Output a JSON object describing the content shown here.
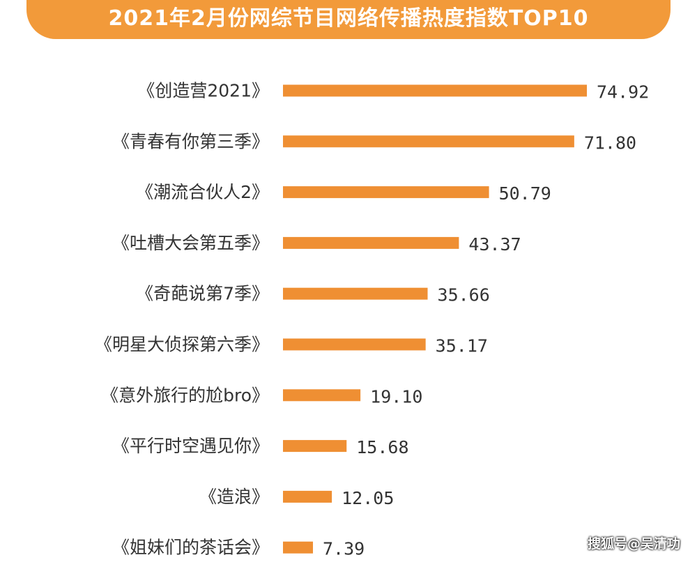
{
  "colors": {
    "banner": "#f29a3a",
    "bar": "#ef8f33",
    "text": "#333333"
  },
  "watermark": "搜狐号@吴清功",
  "chart_data": {
    "type": "bar",
    "orientation": "horizontal",
    "title": "2021年2月份网综节目网络传播热度指数TOP10",
    "categories": [
      "《创造营2021》",
      "《青春有你第三季》",
      "《潮流合伙人2》",
      "《吐槽大会第五季》",
      "《奇葩说第7季》",
      "《明星大侦探第六季》",
      "《意外旅行的尬bro》",
      "《平行时空遇见你》",
      "《造浪》",
      "《姐妹们的茶话会》"
    ],
    "values": [
      74.92,
      71.8,
      50.79,
      43.37,
      35.66,
      35.17,
      19.1,
      15.68,
      12.05,
      7.39
    ],
    "value_labels": [
      "74.92",
      "71.80",
      "50.79",
      "43.37",
      "35.66",
      "35.17",
      "19.10",
      "15.68",
      "12.05",
      "7.39"
    ],
    "xlim": [
      0,
      74.92
    ],
    "grid": false,
    "legend": "none"
  }
}
